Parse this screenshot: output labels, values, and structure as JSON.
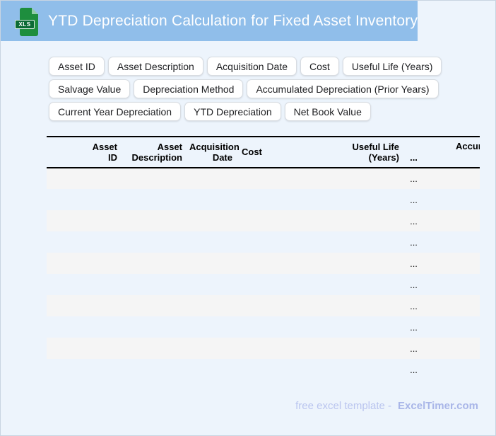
{
  "header": {
    "title": "YTD Depreciation Calculation for Fixed Asset Inventory",
    "file_icon_label": "XLS"
  },
  "chips": [
    "Asset ID",
    "Asset Description",
    "Acquisition Date",
    "Cost",
    "Useful Life (Years)",
    "Salvage Value",
    "Depreciation Method",
    "Accumulated Depreciation (Prior Years)",
    "Current Year Depreciation",
    "YTD Depreciation",
    "Net Book Value"
  ],
  "table": {
    "columns": [
      "Asset\nID",
      "Asset\nDescription",
      "Acquisition\nDate",
      "Cost",
      "Useful Life\n(Years)",
      "...",
      "Accumulated Depreciation (Prior Years)"
    ],
    "row_placeholder": "...",
    "rows": [
      "...",
      "...",
      "...",
      "...",
      "...",
      "...",
      "...",
      "...",
      "...",
      "..."
    ]
  },
  "footer": {
    "prefix": "free excel template -",
    "brand": "ExcelTimer.com"
  },
  "colors": {
    "titlebar_blue": "#90BEEA",
    "page_background": "#EDF4FC",
    "icon_green": "#1E8E3E",
    "icon_band_green": "#0C6B35",
    "row_stripe": "#F5F5F5",
    "footer_text": "#BAC5EF",
    "footer_brand": "#A9B6E8"
  }
}
